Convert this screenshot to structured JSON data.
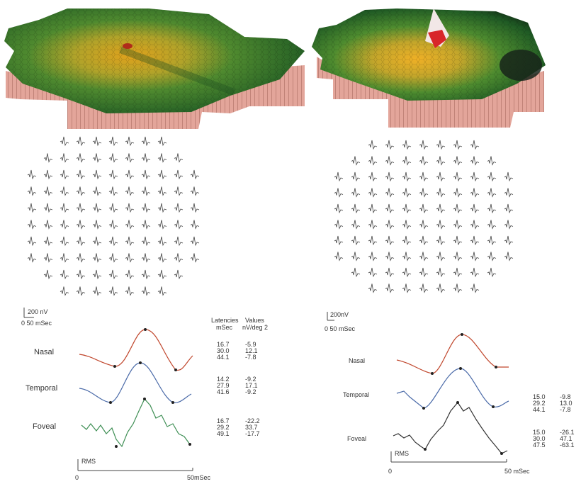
{
  "left": {
    "scale": {
      "amplitude": "200 nV",
      "time": "0 50 mSec"
    },
    "table_header": {
      "lat_top": "Latencies",
      "lat_unit": "mSec",
      "val_top": "Values",
      "val_unit": "nV/deg 2"
    },
    "traces": [
      {
        "name": "Nasal",
        "color": "#c0462c",
        "latencies": [
          "16.7",
          "30.0",
          "44.1"
        ],
        "values": [
          "-5.9",
          "12.1",
          "-7.8"
        ]
      },
      {
        "name": "Temporal",
        "color": "#4a6aa8",
        "latencies": [
          "14.2",
          "27.9",
          "41.6"
        ],
        "values": [
          "-9.2",
          "17.1",
          "-9.2"
        ]
      },
      {
        "name": "Foveal",
        "color": "#3f8f55",
        "latencies": [
          "16.7",
          "29.2",
          "49.1"
        ],
        "values": [
          "-22.2",
          "33.7",
          "-17.7"
        ]
      }
    ],
    "axis": {
      "rms": "RMS",
      "start": "0",
      "end": "50mSec"
    }
  },
  "right": {
    "scale": {
      "amplitude": "200nV",
      "time": "0 50 mSec"
    },
    "traces": [
      {
        "name": "Nasal",
        "color": "#c0462c",
        "latencies": [],
        "values": []
      },
      {
        "name": "Temporal",
        "color": "#4a6aa8",
        "latencies": [
          "15.0",
          "29.2",
          "44.1"
        ],
        "values": [
          "-9.8",
          "13.0",
          "-7.8"
        ]
      },
      {
        "name": "Foveal",
        "color": "#333333",
        "latencies": [
          "15.0",
          "30.0",
          "47.5"
        ],
        "values": [
          "-26.1",
          "47.1",
          "-63.1"
        ]
      }
    ],
    "axis": {
      "rms": "RMS",
      "start": "0",
      "end": "50 mSec"
    }
  }
}
